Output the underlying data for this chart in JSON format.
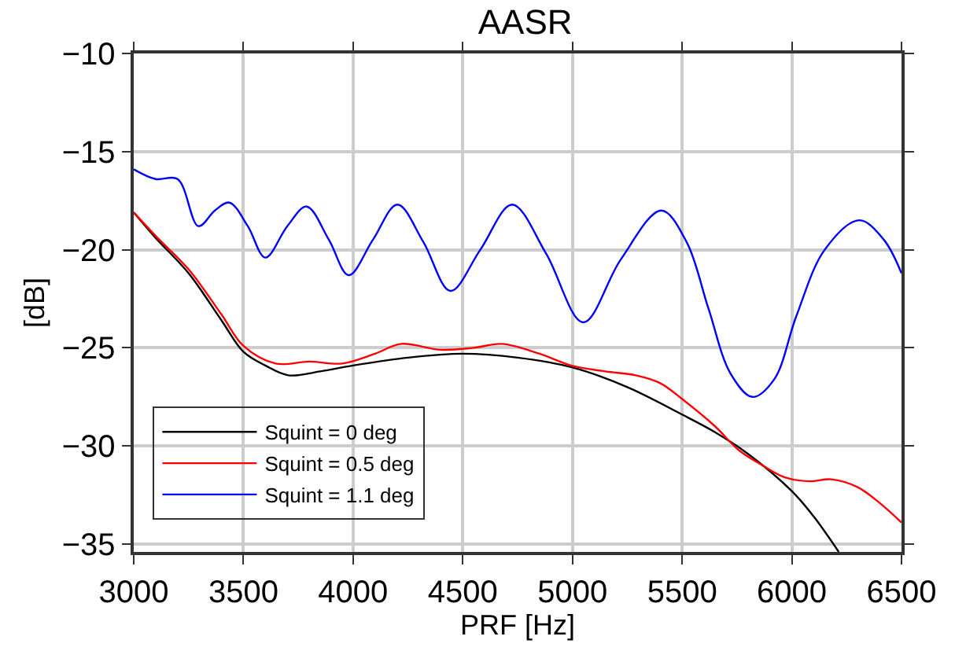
{
  "chart_data": {
    "type": "line",
    "title": "AASR",
    "xlabel": "PRF [Hz]",
    "ylabel": "[dB]",
    "xlim": [
      3000,
      6500
    ],
    "xticks": [
      3000,
      3500,
      4000,
      4500,
      5000,
      5500,
      6000,
      6500
    ],
    "ylim": [
      -35.4,
      -10
    ],
    "yticks": [
      -35,
      -30,
      -25,
      -20,
      -15,
      -10
    ],
    "grid": true,
    "legend": "bottom left",
    "marker": "none",
    "line_style": "solid",
    "series": [
      {
        "name": "Squint = 0 deg",
        "color": "#000000",
        "x": [
          3000,
          3100,
          3250,
          3400,
          3500,
          3600,
          3705,
          3850,
          4000,
          4250,
          4500,
          4750,
          5000,
          5250,
          5500,
          5650,
          5800,
          6000,
          6100,
          6214
        ],
        "values": [
          -18.1,
          -19.4,
          -21.2,
          -23.6,
          -25.2,
          -25.9,
          -26.4,
          -26.2,
          -25.9,
          -25.5,
          -25.3,
          -25.5,
          -26.0,
          -27.0,
          -28.4,
          -29.3,
          -30.4,
          -32.3,
          -33.6,
          -35.4
        ]
      },
      {
        "name": "Squint = 0.5 deg",
        "color": "#ff0000",
        "x": [
          3000,
          3100,
          3250,
          3400,
          3500,
          3647,
          3800,
          3950,
          4100,
          4219,
          4400,
          4550,
          4678,
          4850,
          4994,
          5150,
          5288,
          5400,
          5499,
          5650,
          5757,
          5868,
          5968,
          6080,
          6179,
          6300,
          6400,
          6500
        ],
        "values": [
          -18.1,
          -19.3,
          -21.0,
          -23.3,
          -24.9,
          -25.8,
          -25.7,
          -25.8,
          -25.3,
          -24.8,
          -25.1,
          -25.0,
          -24.8,
          -25.3,
          -25.9,
          -26.2,
          -26.4,
          -26.8,
          -27.6,
          -29.0,
          -30.2,
          -31.0,
          -31.6,
          -31.8,
          -31.7,
          -32.1,
          -32.9,
          -33.9
        ]
      },
      {
        "name": "Squint = 1.1 deg",
        "color": "#0000ff",
        "x": [
          3000,
          3100,
          3200,
          3295,
          3370,
          3436,
          3520,
          3600,
          3700,
          3788,
          3890,
          3980,
          4090,
          4202,
          4320,
          4444,
          4580,
          4725,
          4880,
          5049,
          5220,
          5405,
          5520,
          5620,
          5720,
          5820,
          5920,
          6020,
          6150,
          6307,
          6420,
          6500
        ],
        "values": [
          -15.9,
          -16.4,
          -16.4,
          -18.8,
          -18.0,
          -17.6,
          -18.8,
          -20.4,
          -18.8,
          -17.8,
          -19.5,
          -21.3,
          -19.5,
          -17.7,
          -19.6,
          -22.1,
          -20.0,
          -17.7,
          -20.2,
          -23.7,
          -20.5,
          -18.0,
          -19.6,
          -23.0,
          -26.3,
          -27.5,
          -26.6,
          -23.4,
          -20.0,
          -18.5,
          -19.5,
          -21.2
        ]
      }
    ]
  }
}
